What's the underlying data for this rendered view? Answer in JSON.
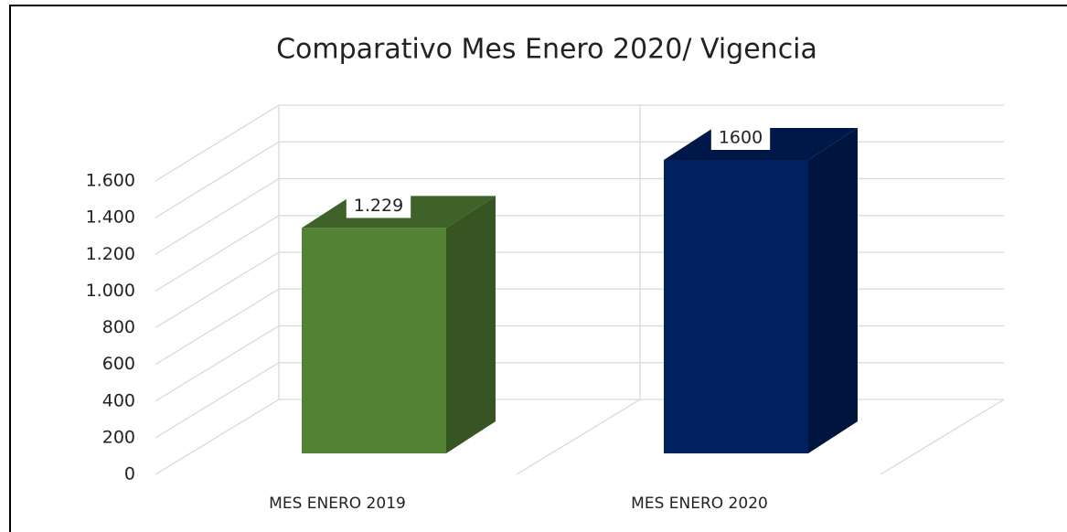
{
  "chart_data": {
    "type": "bar3d",
    "title": "Comparativo Mes Enero 2020/ Vigencia",
    "categories": [
      "MES ENERO 2019",
      "MES ENERO 2020"
    ],
    "values": [
      1229,
      1600
    ],
    "value_labels": [
      "1.229",
      "1600"
    ],
    "colors": [
      "#548235",
      "#002060"
    ],
    "ylim": [
      0,
      1600
    ],
    "yticks": [
      0,
      200,
      400,
      600,
      800,
      {
        "value": 1000,
        "label": "1.000"
      },
      {
        "value": 1200,
        "label": "1.200"
      },
      {
        "value": 1400,
        "label": "1.400"
      },
      {
        "value": 1600,
        "label": "1.600"
      }
    ],
    "grid": true
  }
}
